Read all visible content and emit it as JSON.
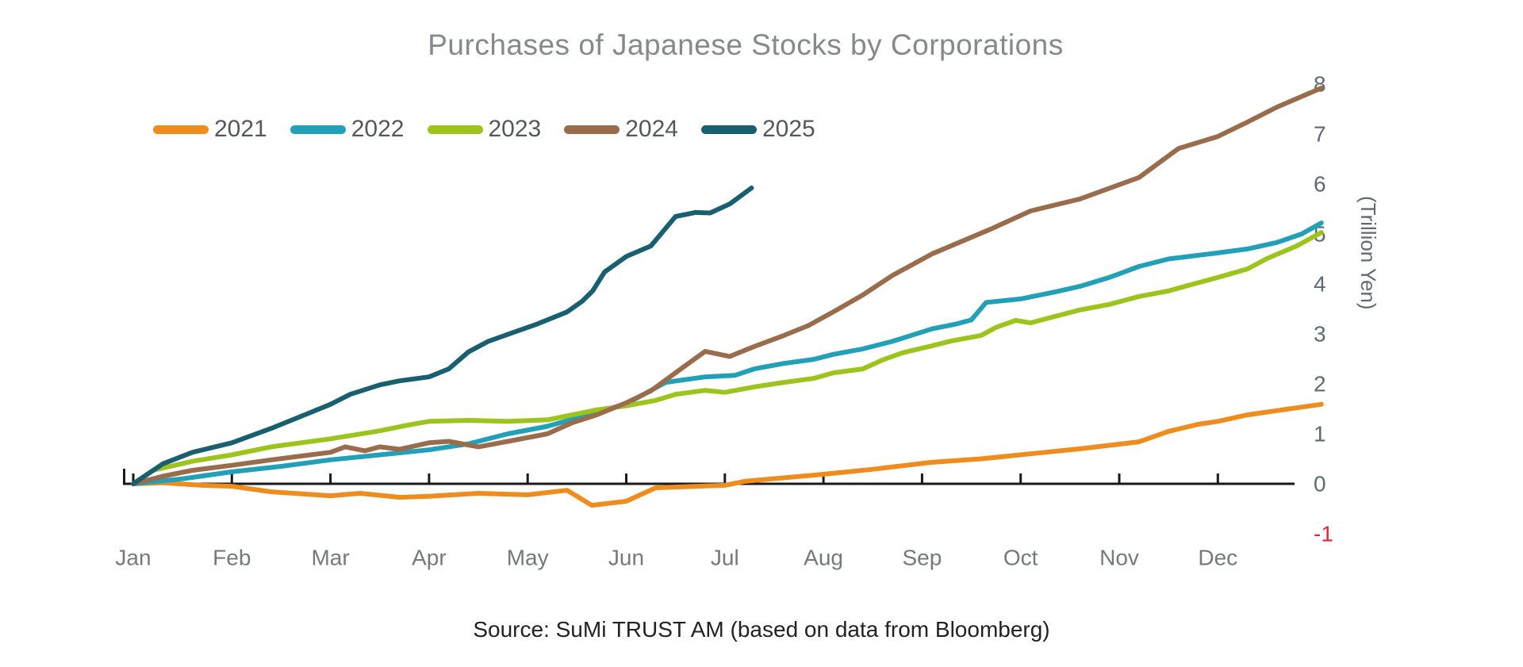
{
  "title": "Purchases of Japanese Stocks by Corporations",
  "source": "Source: SuMi TRUST AM (based on data from Bloomberg)",
  "colors": {
    "title_text": "#85898d",
    "legend_text": "#54575b",
    "axis": "#1a1a1a",
    "x_tick_text": "#76797c",
    "y_tick_text": "#5d6a74",
    "y_tick_negative_text": "#e2263a",
    "source_text": "#222222"
  },
  "chart_data": {
    "type": "line",
    "title": "Purchases of Japanese Stocks by Corporations",
    "unit_label": "(Trillion Yen)",
    "source": "Source: SuMi TRUST AM (based on data from Bloomberg)",
    "x_tick_labels": [
      "Jan",
      "Feb",
      "Mar",
      "Apr",
      "May",
      "Jun",
      "Jul",
      "Aug",
      "Sep",
      "Oct",
      "Nov",
      "Dec"
    ],
    "y_ticks": [
      8,
      7,
      6,
      5,
      4,
      3,
      2,
      1,
      0,
      -1
    ],
    "ylim": [
      -1,
      8
    ],
    "grid": false,
    "legend_position": "top-left",
    "x_unit_note": "x = month position, 0 = start of Jan, 11 = start of Dec, 12 = year end; values in trillion yen (cumulative purchases)",
    "series": [
      {
        "name": "2021",
        "color": "#ee8c1e",
        "points": [
          [
            0,
            0
          ],
          [
            0.3,
            0.02
          ],
          [
            0.7,
            -0.03
          ],
          [
            1,
            -0.05
          ],
          [
            1.4,
            -0.16
          ],
          [
            2,
            -0.24
          ],
          [
            2.3,
            -0.19
          ],
          [
            2.7,
            -0.27
          ],
          [
            3,
            -0.25
          ],
          [
            3.5,
            -0.19
          ],
          [
            4,
            -0.22
          ],
          [
            4.4,
            -0.13
          ],
          [
            4.65,
            -0.43
          ],
          [
            5,
            -0.35
          ],
          [
            5.3,
            -0.08
          ],
          [
            6,
            -0.03
          ],
          [
            6.2,
            0.05
          ],
          [
            7,
            0.19
          ],
          [
            7.5,
            0.29
          ],
          [
            8.1,
            0.43
          ],
          [
            8.6,
            0.5
          ],
          [
            9.1,
            0.6
          ],
          [
            9.6,
            0.7
          ],
          [
            10.2,
            0.84
          ],
          [
            10.5,
            1.05
          ],
          [
            10.8,
            1.19
          ],
          [
            11,
            1.25
          ],
          [
            11.3,
            1.38
          ],
          [
            11.8,
            1.52
          ],
          [
            12.05,
            1.59
          ]
        ]
      },
      {
        "name": "2022",
        "color": "#22a0b8",
        "points": [
          [
            0,
            0
          ],
          [
            0.5,
            0.1
          ],
          [
            1,
            0.24
          ],
          [
            1.5,
            0.35
          ],
          [
            2,
            0.48
          ],
          [
            2.5,
            0.58
          ],
          [
            3,
            0.68
          ],
          [
            3.4,
            0.8
          ],
          [
            3.8,
            1.0
          ],
          [
            4.2,
            1.15
          ],
          [
            4.7,
            1.43
          ],
          [
            5,
            1.6
          ],
          [
            5.4,
            2.03
          ],
          [
            5.8,
            2.14
          ],
          [
            6.1,
            2.17
          ],
          [
            6.3,
            2.3
          ],
          [
            6.6,
            2.41
          ],
          [
            6.9,
            2.49
          ],
          [
            7.1,
            2.59
          ],
          [
            7.4,
            2.7
          ],
          [
            7.7,
            2.85
          ],
          [
            8.1,
            3.1
          ],
          [
            8.35,
            3.2
          ],
          [
            8.5,
            3.28
          ],
          [
            8.65,
            3.63
          ],
          [
            9,
            3.7
          ],
          [
            9.35,
            3.84
          ],
          [
            9.6,
            3.95
          ],
          [
            9.9,
            4.13
          ],
          [
            10.2,
            4.35
          ],
          [
            10.5,
            4.5
          ],
          [
            11,
            4.62
          ],
          [
            11.3,
            4.7
          ],
          [
            11.6,
            4.83
          ],
          [
            11.85,
            5.0
          ],
          [
            12.05,
            5.22
          ]
        ]
      },
      {
        "name": "2023",
        "color": "#9dc41c",
        "points": [
          [
            0,
            0
          ],
          [
            0.2,
            0.27
          ],
          [
            0.6,
            0.45
          ],
          [
            1,
            0.58
          ],
          [
            1.4,
            0.74
          ],
          [
            2,
            0.9
          ],
          [
            2.5,
            1.06
          ],
          [
            2.8,
            1.18
          ],
          [
            3,
            1.25
          ],
          [
            3.4,
            1.27
          ],
          [
            3.8,
            1.25
          ],
          [
            4.2,
            1.28
          ],
          [
            4.7,
            1.48
          ],
          [
            5,
            1.56
          ],
          [
            5.3,
            1.67
          ],
          [
            5.5,
            1.79
          ],
          [
            5.8,
            1.87
          ],
          [
            6,
            1.83
          ],
          [
            6.3,
            1.94
          ],
          [
            6.6,
            2.03
          ],
          [
            6.9,
            2.11
          ],
          [
            7.1,
            2.22
          ],
          [
            7.4,
            2.3
          ],
          [
            7.6,
            2.48
          ],
          [
            7.8,
            2.62
          ],
          [
            8.1,
            2.76
          ],
          [
            8.3,
            2.86
          ],
          [
            8.6,
            2.97
          ],
          [
            8.75,
            3.13
          ],
          [
            8.95,
            3.27
          ],
          [
            9.1,
            3.22
          ],
          [
            9.35,
            3.35
          ],
          [
            9.6,
            3.48
          ],
          [
            9.9,
            3.59
          ],
          [
            10.2,
            3.75
          ],
          [
            10.5,
            3.86
          ],
          [
            10.7,
            3.97
          ],
          [
            11,
            4.13
          ],
          [
            11.3,
            4.3
          ],
          [
            11.5,
            4.51
          ],
          [
            11.8,
            4.76
          ],
          [
            12.05,
            5.03
          ]
        ]
      },
      {
        "name": "2024",
        "color": "#996c4c",
        "points": [
          [
            0,
            0
          ],
          [
            0.3,
            0.15
          ],
          [
            0.6,
            0.27
          ],
          [
            1,
            0.37
          ],
          [
            1.4,
            0.48
          ],
          [
            2,
            0.63
          ],
          [
            2.15,
            0.74
          ],
          [
            2.35,
            0.66
          ],
          [
            2.5,
            0.74
          ],
          [
            2.7,
            0.69
          ],
          [
            3,
            0.82
          ],
          [
            3.2,
            0.85
          ],
          [
            3.5,
            0.74
          ],
          [
            3.8,
            0.85
          ],
          [
            4.2,
            1.0
          ],
          [
            4.45,
            1.22
          ],
          [
            4.7,
            1.38
          ],
          [
            5,
            1.62
          ],
          [
            5.25,
            1.86
          ],
          [
            5.5,
            2.22
          ],
          [
            5.8,
            2.65
          ],
          [
            6.05,
            2.55
          ],
          [
            6.3,
            2.75
          ],
          [
            6.6,
            2.97
          ],
          [
            6.85,
            3.17
          ],
          [
            7.1,
            3.44
          ],
          [
            7.4,
            3.78
          ],
          [
            7.7,
            4.17
          ],
          [
            8.1,
            4.6
          ],
          [
            8.7,
            5.1
          ],
          [
            9.1,
            5.46
          ],
          [
            9.6,
            5.7
          ],
          [
            10.2,
            6.13
          ],
          [
            10.6,
            6.71
          ],
          [
            11,
            6.95
          ],
          [
            11.3,
            7.24
          ],
          [
            11.6,
            7.54
          ],
          [
            12.05,
            7.92
          ]
        ]
      },
      {
        "name": "2025",
        "color": "#185f70",
        "points": [
          [
            0,
            0
          ],
          [
            0.3,
            0.4
          ],
          [
            0.6,
            0.63
          ],
          [
            1,
            0.82
          ],
          [
            1.4,
            1.11
          ],
          [
            1.7,
            1.35
          ],
          [
            2,
            1.59
          ],
          [
            2.2,
            1.79
          ],
          [
            2.5,
            1.98
          ],
          [
            2.7,
            2.06
          ],
          [
            3,
            2.14
          ],
          [
            3.2,
            2.3
          ],
          [
            3.4,
            2.64
          ],
          [
            3.6,
            2.85
          ],
          [
            3.8,
            2.99
          ],
          [
            4.1,
            3.2
          ],
          [
            4.4,
            3.44
          ],
          [
            4.55,
            3.65
          ],
          [
            4.66,
            3.86
          ],
          [
            4.78,
            4.24
          ],
          [
            5,
            4.55
          ],
          [
            5.25,
            4.76
          ],
          [
            5.5,
            5.35
          ],
          [
            5.7,
            5.43
          ],
          [
            5.85,
            5.42
          ],
          [
            6.05,
            5.6
          ],
          [
            6.27,
            5.92
          ]
        ]
      }
    ]
  }
}
